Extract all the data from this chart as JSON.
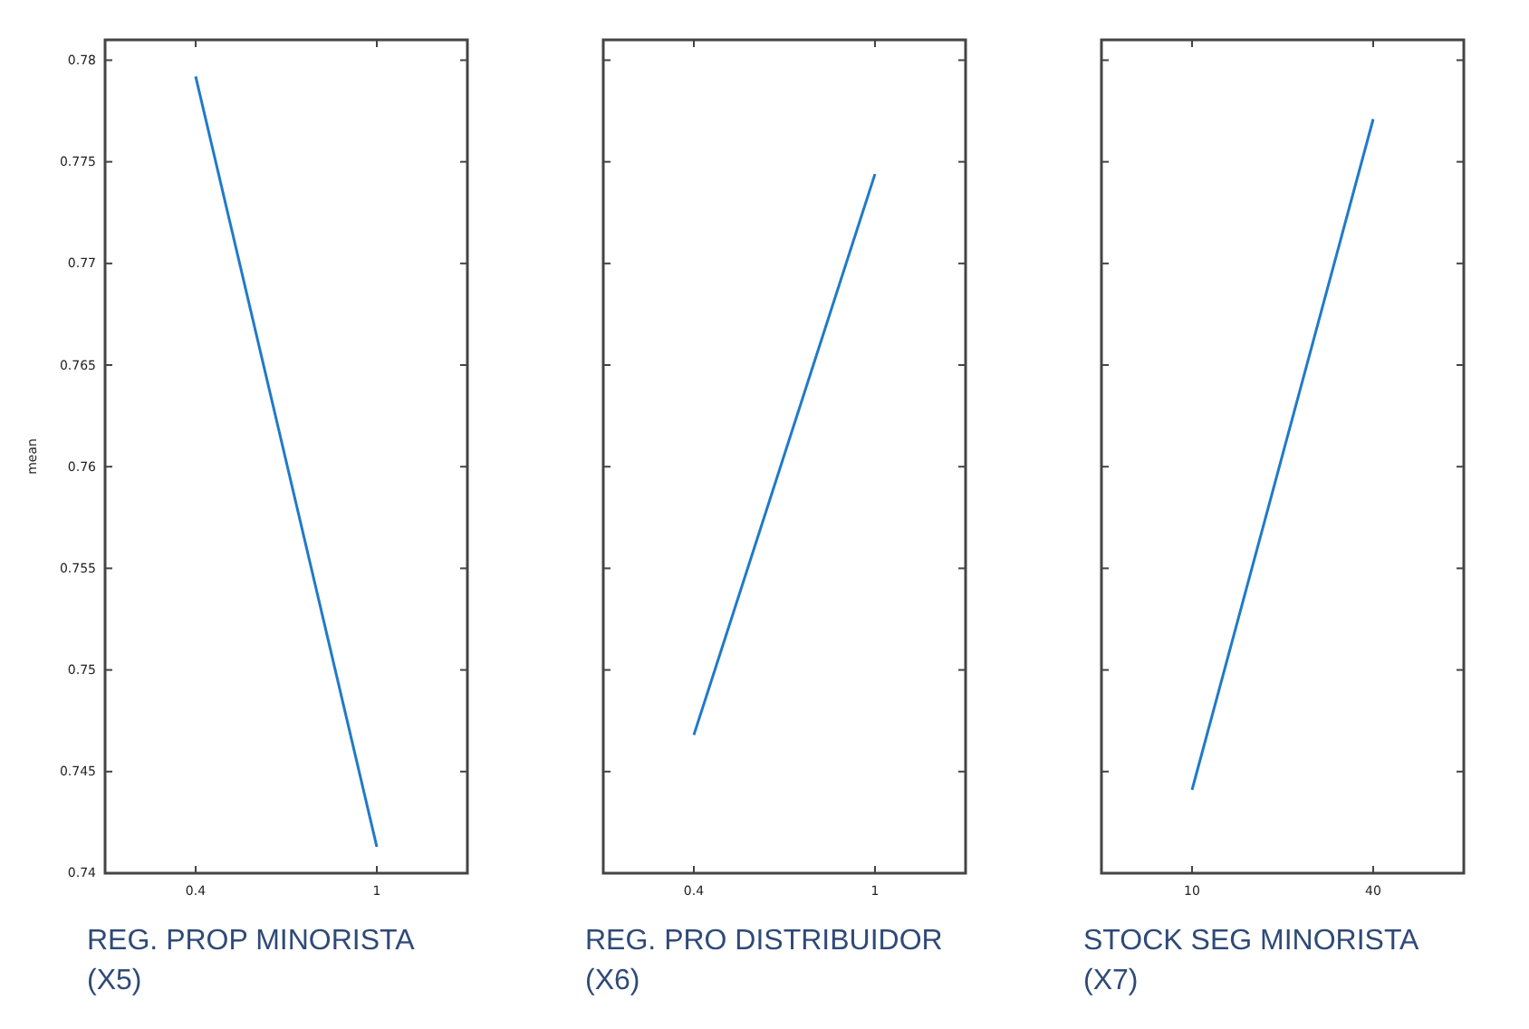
{
  "chart_data": [
    {
      "type": "line",
      "xlabel": "REG. PROP MINORISTA (X5)",
      "ylabel": "mean",
      "x": [
        0.4,
        1
      ],
      "series": [
        {
          "color": "#1f7ac9",
          "values": [
            0.7792,
            0.7413
          ]
        }
      ],
      "xlim": [
        0.1,
        1.3
      ],
      "xticks": [
        0.4,
        1
      ],
      "ylim": [
        0.74,
        0.781
      ],
      "yticks": [
        0.74,
        0.745,
        0.75,
        0.755,
        0.76,
        0.765,
        0.77,
        0.775,
        0.78
      ],
      "grid": false
    },
    {
      "type": "line",
      "xlabel": "REG. PRO DISTRIBUIDOR (X6)",
      "x": [
        0.4,
        1
      ],
      "series": [
        {
          "color": "#1f7ac9",
          "values": [
            0.7468,
            0.7744
          ]
        }
      ],
      "xlim": [
        0.1,
        1.3
      ],
      "xticks": [
        0.4,
        1
      ],
      "ylim": [
        0.74,
        0.781
      ],
      "yticks": [
        0.74,
        0.745,
        0.75,
        0.755,
        0.76,
        0.765,
        0.77,
        0.775,
        0.78
      ],
      "tick_labels": "x",
      "grid": false
    },
    {
      "type": "line",
      "xlabel": "STOCK SEG MINORISTA (X7)",
      "x": [
        10,
        40
      ],
      "series": [
        {
          "color": "#1f7ac9",
          "values": [
            0.7441,
            0.7771
          ]
        }
      ],
      "xlim": [
        -5,
        55
      ],
      "xticks": [
        10,
        40
      ],
      "ylim": [
        0.74,
        0.781
      ],
      "yticks": [
        0.74,
        0.745,
        0.75,
        0.755,
        0.76,
        0.765,
        0.77,
        0.775,
        0.78
      ],
      "tick_labels": "x",
      "grid": false
    }
  ]
}
